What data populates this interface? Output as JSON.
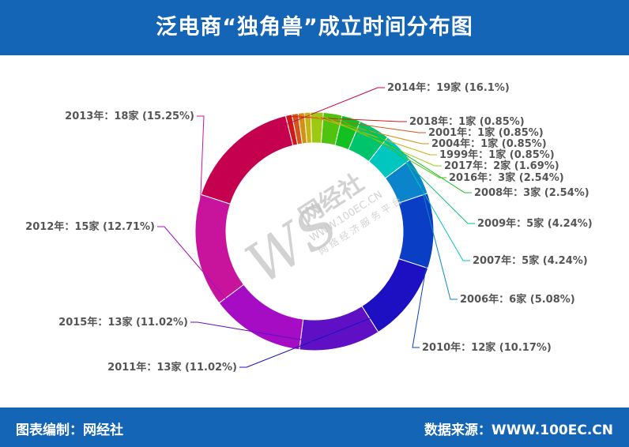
{
  "header": {
    "title": "泛电商“独角兽”成立时间分布图"
  },
  "footer": {
    "left": "图表编制：网经社",
    "right": "数据来源：WWW.100EC.CN"
  },
  "watermark": {
    "logo_letters": "WS",
    "name": "网经社",
    "url": "WWW.100EC.CN",
    "slogan": "网 络 经 济 服 务 平 台"
  },
  "chart_data": {
    "type": "pie",
    "variant": "donut",
    "unit": "家",
    "slices": [
      {
        "label": "2014年",
        "value": 19,
        "percent": "16.1%",
        "color": "#c4004f",
        "text": "2014年：19家 (16.1%)"
      },
      {
        "label": "2018年",
        "value": 1,
        "percent": "0.85%",
        "color": "#d01818",
        "text": "2018年：1家 (0.85%)"
      },
      {
        "label": "2001年",
        "value": 1,
        "percent": "0.85%",
        "color": "#d5541a",
        "text": "2001年：1家 (0.85%)"
      },
      {
        "label": "2004年",
        "value": 1,
        "percent": "0.85%",
        "color": "#d49014",
        "text": "2004年：1家 (0.85%)"
      },
      {
        "label": "1999年",
        "value": 1,
        "percent": "0.85%",
        "color": "#c8b410",
        "text": "1999年：1家 (0.85%)"
      },
      {
        "label": "2017年",
        "value": 2,
        "percent": "1.69%",
        "color": "#9ec912",
        "text": "2017年：2家 (1.69%)"
      },
      {
        "label": "2016年",
        "value": 3,
        "percent": "2.54%",
        "color": "#4fc30f",
        "text": "2016年：3家 (2.54%)"
      },
      {
        "label": "2008年",
        "value": 3,
        "percent": "2.54%",
        "color": "#14c020",
        "text": "2008年：3家 (2.54%)"
      },
      {
        "label": "2009年",
        "value": 5,
        "percent": "4.24%",
        "color": "#00c46c",
        "text": "2009年：5家 (4.24%)"
      },
      {
        "label": "2007年",
        "value": 5,
        "percent": "4.24%",
        "color": "#00c6c0",
        "text": "2007年：5家 (4.24%)"
      },
      {
        "label": "2006年",
        "value": 6,
        "percent": "5.08%",
        "color": "#0c84cc",
        "text": "2006年：6家 (5.08%)"
      },
      {
        "label": "2010年",
        "value": 12,
        "percent": "10.17%",
        "color": "#0a3ec4",
        "text": "2010年：12家 (10.17%)"
      },
      {
        "label": "2011年",
        "value": 13,
        "percent": "11.02%",
        "color": "#1c10c2",
        "text": "2011年：13家 (11.02%)"
      },
      {
        "label": "2015年",
        "value": 13,
        "percent": "11.02%",
        "color": "#6010c4",
        "text": "2015年：13家 (11.02%)"
      },
      {
        "label": "2012年",
        "value": 15,
        "percent": "12.71%",
        "color": "#a60cc4",
        "text": "2012年：15家 (12.71%)"
      },
      {
        "label": "2013年",
        "value": 18,
        "percent": "15.25%",
        "color": "#c8149c",
        "text": "2013年：18家 (15.25%)"
      }
    ]
  }
}
